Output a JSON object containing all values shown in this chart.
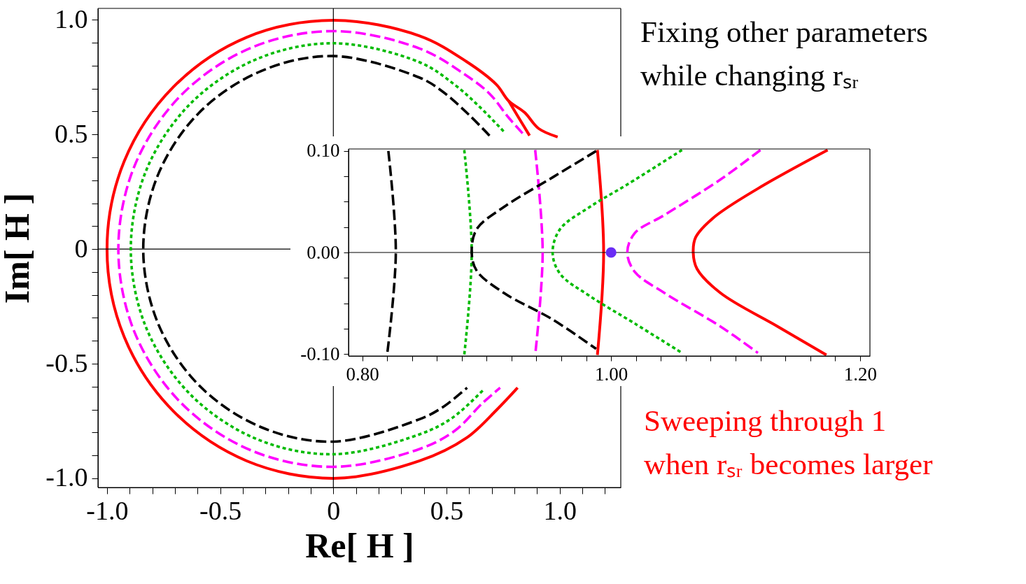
{
  "chart_data": [
    {
      "type": "line",
      "xlabel": "Re[ H ]",
      "ylabel": "Im[ H ]",
      "xlim": [
        -1.04,
        1.27
      ],
      "ylim": [
        -1.04,
        1.05
      ],
      "xticks": [
        {
          "value": -1.0,
          "label": "-1.0"
        },
        {
          "value": -0.9,
          "label": null
        },
        {
          "value": -0.8,
          "label": null
        },
        {
          "value": -0.7,
          "label": null
        },
        {
          "value": -0.6,
          "label": null
        },
        {
          "value": -0.5,
          "label": "-0.5"
        },
        {
          "value": -0.4,
          "label": null
        },
        {
          "value": -0.3,
          "label": null
        },
        {
          "value": -0.2,
          "label": null
        },
        {
          "value": -0.1,
          "label": null
        },
        0,
        {
          "value": 0.1,
          "label": null
        },
        {
          "value": 0.2,
          "label": null
        },
        {
          "value": 0.3,
          "label": null
        },
        {
          "value": 0.4,
          "label": null
        },
        0.5,
        {
          "value": 0.6,
          "label": null
        },
        {
          "value": 0.7,
          "label": null
        },
        {
          "value": 0.8,
          "label": null
        },
        {
          "value": 0.9,
          "label": null
        },
        {
          "value": 1.0,
          "label": "1.0"
        },
        {
          "value": 1.1,
          "label": null
        },
        {
          "value": 1.2,
          "label": null
        }
      ],
      "yticks": [
        {
          "value": -1.0,
          "label": "-1.0"
        },
        {
          "value": -0.9,
          "label": null
        },
        {
          "value": -0.8,
          "label": null
        },
        {
          "value": -0.7,
          "label": null
        },
        {
          "value": -0.6,
          "label": null
        },
        {
          "value": -0.5,
          "label": "-0.5"
        },
        {
          "value": -0.4,
          "label": null
        },
        {
          "value": -0.3,
          "label": null
        },
        {
          "value": -0.2,
          "label": null
        },
        {
          "value": -0.1,
          "label": null
        },
        0,
        {
          "value": 0.1,
          "label": null
        },
        {
          "value": 0.2,
          "label": null
        },
        {
          "value": 0.3,
          "label": null
        },
        {
          "value": 0.4,
          "label": null
        },
        0.5,
        {
          "value": 0.6,
          "label": null
        },
        {
          "value": 0.7,
          "label": null
        },
        {
          "value": 0.8,
          "label": null
        },
        {
          "value": 0.9,
          "label": null
        },
        {
          "value": 1.0,
          "label": "1.0"
        }
      ],
      "ref_lines": [
        {
          "axis": "x",
          "value": 0
        },
        {
          "axis": "y",
          "value": 0
        }
      ],
      "annotations": [
        "Fixing other parameters\nwhile changing rₛᵣ",
        "Sweeping through 1\nwhen  rₛᵣ becomes larger"
      ],
      "series": [
        {
          "color": "#ff0000",
          "line_style": "solid",
          "x": [
            0.991,
            0.907,
            0.845,
            0.774,
            0.721,
            0.588,
            0.381,
            0,
            -0.383,
            -0.707,
            -0.924,
            -1.0,
            -0.924,
            -0.707,
            -0.383,
            0,
            0.381,
            0.588,
            0.721,
            0.814,
            null,
            0.774,
            0.824,
            0.867
          ],
          "values": [
            0.489,
            0.526,
            0.596,
            0.647,
            0.717,
            0.818,
            0.93,
            0.998,
            0.924,
            0.707,
            0.383,
            0,
            -0.383,
            -0.707,
            -0.924,
            -1.0,
            -0.924,
            -0.824,
            -0.702,
            -0.605,
            null,
            0.647,
            0.565,
            0.495
          ]
        },
        {
          "color": "#ff00ff",
          "line_style": "dashed",
          "x": [
            0.836,
            0.774,
            0.69,
            0.588,
            0.381,
            0,
            -0.364,
            -0.672,
            -0.878,
            -0.95,
            -0.878,
            -0.672,
            -0.364,
            0,
            0.381,
            0.536,
            0.659,
            0.737
          ],
          "values": [
            0.505,
            0.574,
            0.678,
            0.757,
            0.875,
            0.951,
            0.878,
            0.672,
            0.364,
            0,
            -0.364,
            -0.672,
            -0.878,
            -0.95,
            -0.872,
            -0.793,
            -0.672,
            -0.605
          ]
        },
        {
          "color": "#00bb00",
          "line_style": "dotted",
          "x": [
            0.752,
            0.65,
            0.536,
            0.381,
            0,
            -0.343,
            -0.633,
            -0.827,
            -0.895,
            -0.827,
            -0.633,
            -0.343,
            0,
            0.381,
            0.526,
            0.666
          ],
          "values": [
            0.514,
            0.617,
            0.717,
            0.815,
            0.898,
            0.827,
            0.633,
            0.343,
            0,
            -0.343,
            -0.633,
            -0.827,
            -0.895,
            -0.808,
            -0.736,
            -0.611
          ]
        },
        {
          "color": "#000000",
          "line_style": "dashed",
          "x": [
            0.69,
            0.598,
            0.483,
            0.381,
            0,
            -0.321,
            -0.594,
            -0.776,
            -0.84,
            -0.776,
            -0.594,
            -0.321,
            0,
            0.381,
            0.483,
            0.591
          ],
          "values": [
            0.495,
            0.587,
            0.687,
            0.748,
            0.842,
            0.776,
            0.594,
            0.321,
            0,
            -0.321,
            -0.594,
            -0.776,
            -0.84,
            -0.742,
            -0.69,
            -0.605
          ]
        }
      ]
    },
    {
      "type": "line",
      "xlim": [
        0.789,
        1.208
      ],
      "ylim": [
        -0.102,
        0.102
      ],
      "xticks": [
        {
          "value": 0.8,
          "label": "0.80"
        },
        {
          "value": 0.82,
          "label": null
        },
        {
          "value": 0.84,
          "label": null
        },
        {
          "value": 0.86,
          "label": null
        },
        {
          "value": 0.88,
          "label": null
        },
        {
          "value": 0.9,
          "label": null
        },
        {
          "value": 0.92,
          "label": null
        },
        {
          "value": 0.94,
          "label": null
        },
        {
          "value": 0.96,
          "label": null
        },
        {
          "value": 0.98,
          "label": null
        },
        {
          "value": 1.0,
          "label": "1.00"
        },
        {
          "value": 1.02,
          "label": null
        },
        {
          "value": 1.04,
          "label": null
        },
        {
          "value": 1.06,
          "label": null
        },
        {
          "value": 1.08,
          "label": null
        },
        {
          "value": 1.1,
          "label": null
        },
        {
          "value": 1.12,
          "label": null
        },
        {
          "value": 1.14,
          "label": null
        },
        {
          "value": 1.16,
          "label": null
        },
        {
          "value": 1.18,
          "label": null
        },
        {
          "value": 1.2,
          "label": "1.20"
        }
      ],
      "yticks": [
        {
          "value": -0.1,
          "label": "-0.10"
        },
        {
          "value": -0.075,
          "label": null
        },
        {
          "value": -0.05,
          "label": null
        },
        {
          "value": -0.025,
          "label": null
        },
        {
          "value": 0,
          "label": "0.00"
        },
        {
          "value": 0.025,
          "label": null
        },
        {
          "value": 0.05,
          "label": null
        },
        {
          "value": 0.075,
          "label": null
        },
        {
          "value": 0.1,
          "label": "0.10"
        }
      ],
      "ref_lines": [
        {
          "axis": "y",
          "value": 0
        }
      ],
      "series": [
        {
          "color": "#ff0000",
          "line_style": "solid",
          "x": [
            0.989,
            0.994,
            0.989,
            null,
            1.174,
            1.118,
            1.082,
            1.068,
            1.066,
            1.069,
            1.088,
            1.134,
            1.173
          ],
          "values": [
            0.101,
            0,
            -0.101,
            null,
            0.101,
            0.063,
            0.034,
            0.015,
            0,
            -0.016,
            -0.04,
            -0.073,
            -0.101
          ]
        },
        {
          "color": "#ff00ff",
          "line_style": "dashed",
          "x": [
            0.939,
            0.945,
            0.939,
            null,
            1.12,
            1.088,
            1.043,
            1.019,
            1.013,
            1.019,
            1.043,
            1.088,
            1.118
          ],
          "values": [
            0.101,
            0,
            -0.101,
            null,
            0.101,
            0.072,
            0.037,
            0.019,
            0,
            -0.019,
            -0.04,
            -0.073,
            -0.099
          ]
        },
        {
          "color": "#00bb00",
          "line_style": "dotted",
          "x": [
            0.882,
            0.888,
            0.882,
            null,
            1.057,
            1.013,
            0.983,
            0.959,
            0.953,
            0.959,
            0.983,
            1.019,
            1.057
          ],
          "values": [
            0.101,
            0,
            -0.101,
            null,
            0.101,
            0.067,
            0.045,
            0.023,
            0,
            -0.021,
            -0.043,
            -0.07,
            -0.099
          ]
        },
        {
          "color": "#000000",
          "line_style": "dashed",
          "x": [
            0.821,
            0.827,
            0.82,
            null,
            0.988,
            0.953,
            0.914,
            0.892,
            0.888,
            0.892,
            0.914,
            0.953,
            0.988
          ],
          "values": [
            0.1,
            0,
            -0.101,
            null,
            0.1,
            0.074,
            0.045,
            0.023,
            0,
            -0.018,
            -0.04,
            -0.066,
            -0.095
          ]
        },
        {
          "type": "scatter",
          "marker": "circle",
          "color": "#6a2cf5",
          "x": [
            1.0
          ],
          "values": [
            0
          ]
        }
      ]
    }
  ]
}
